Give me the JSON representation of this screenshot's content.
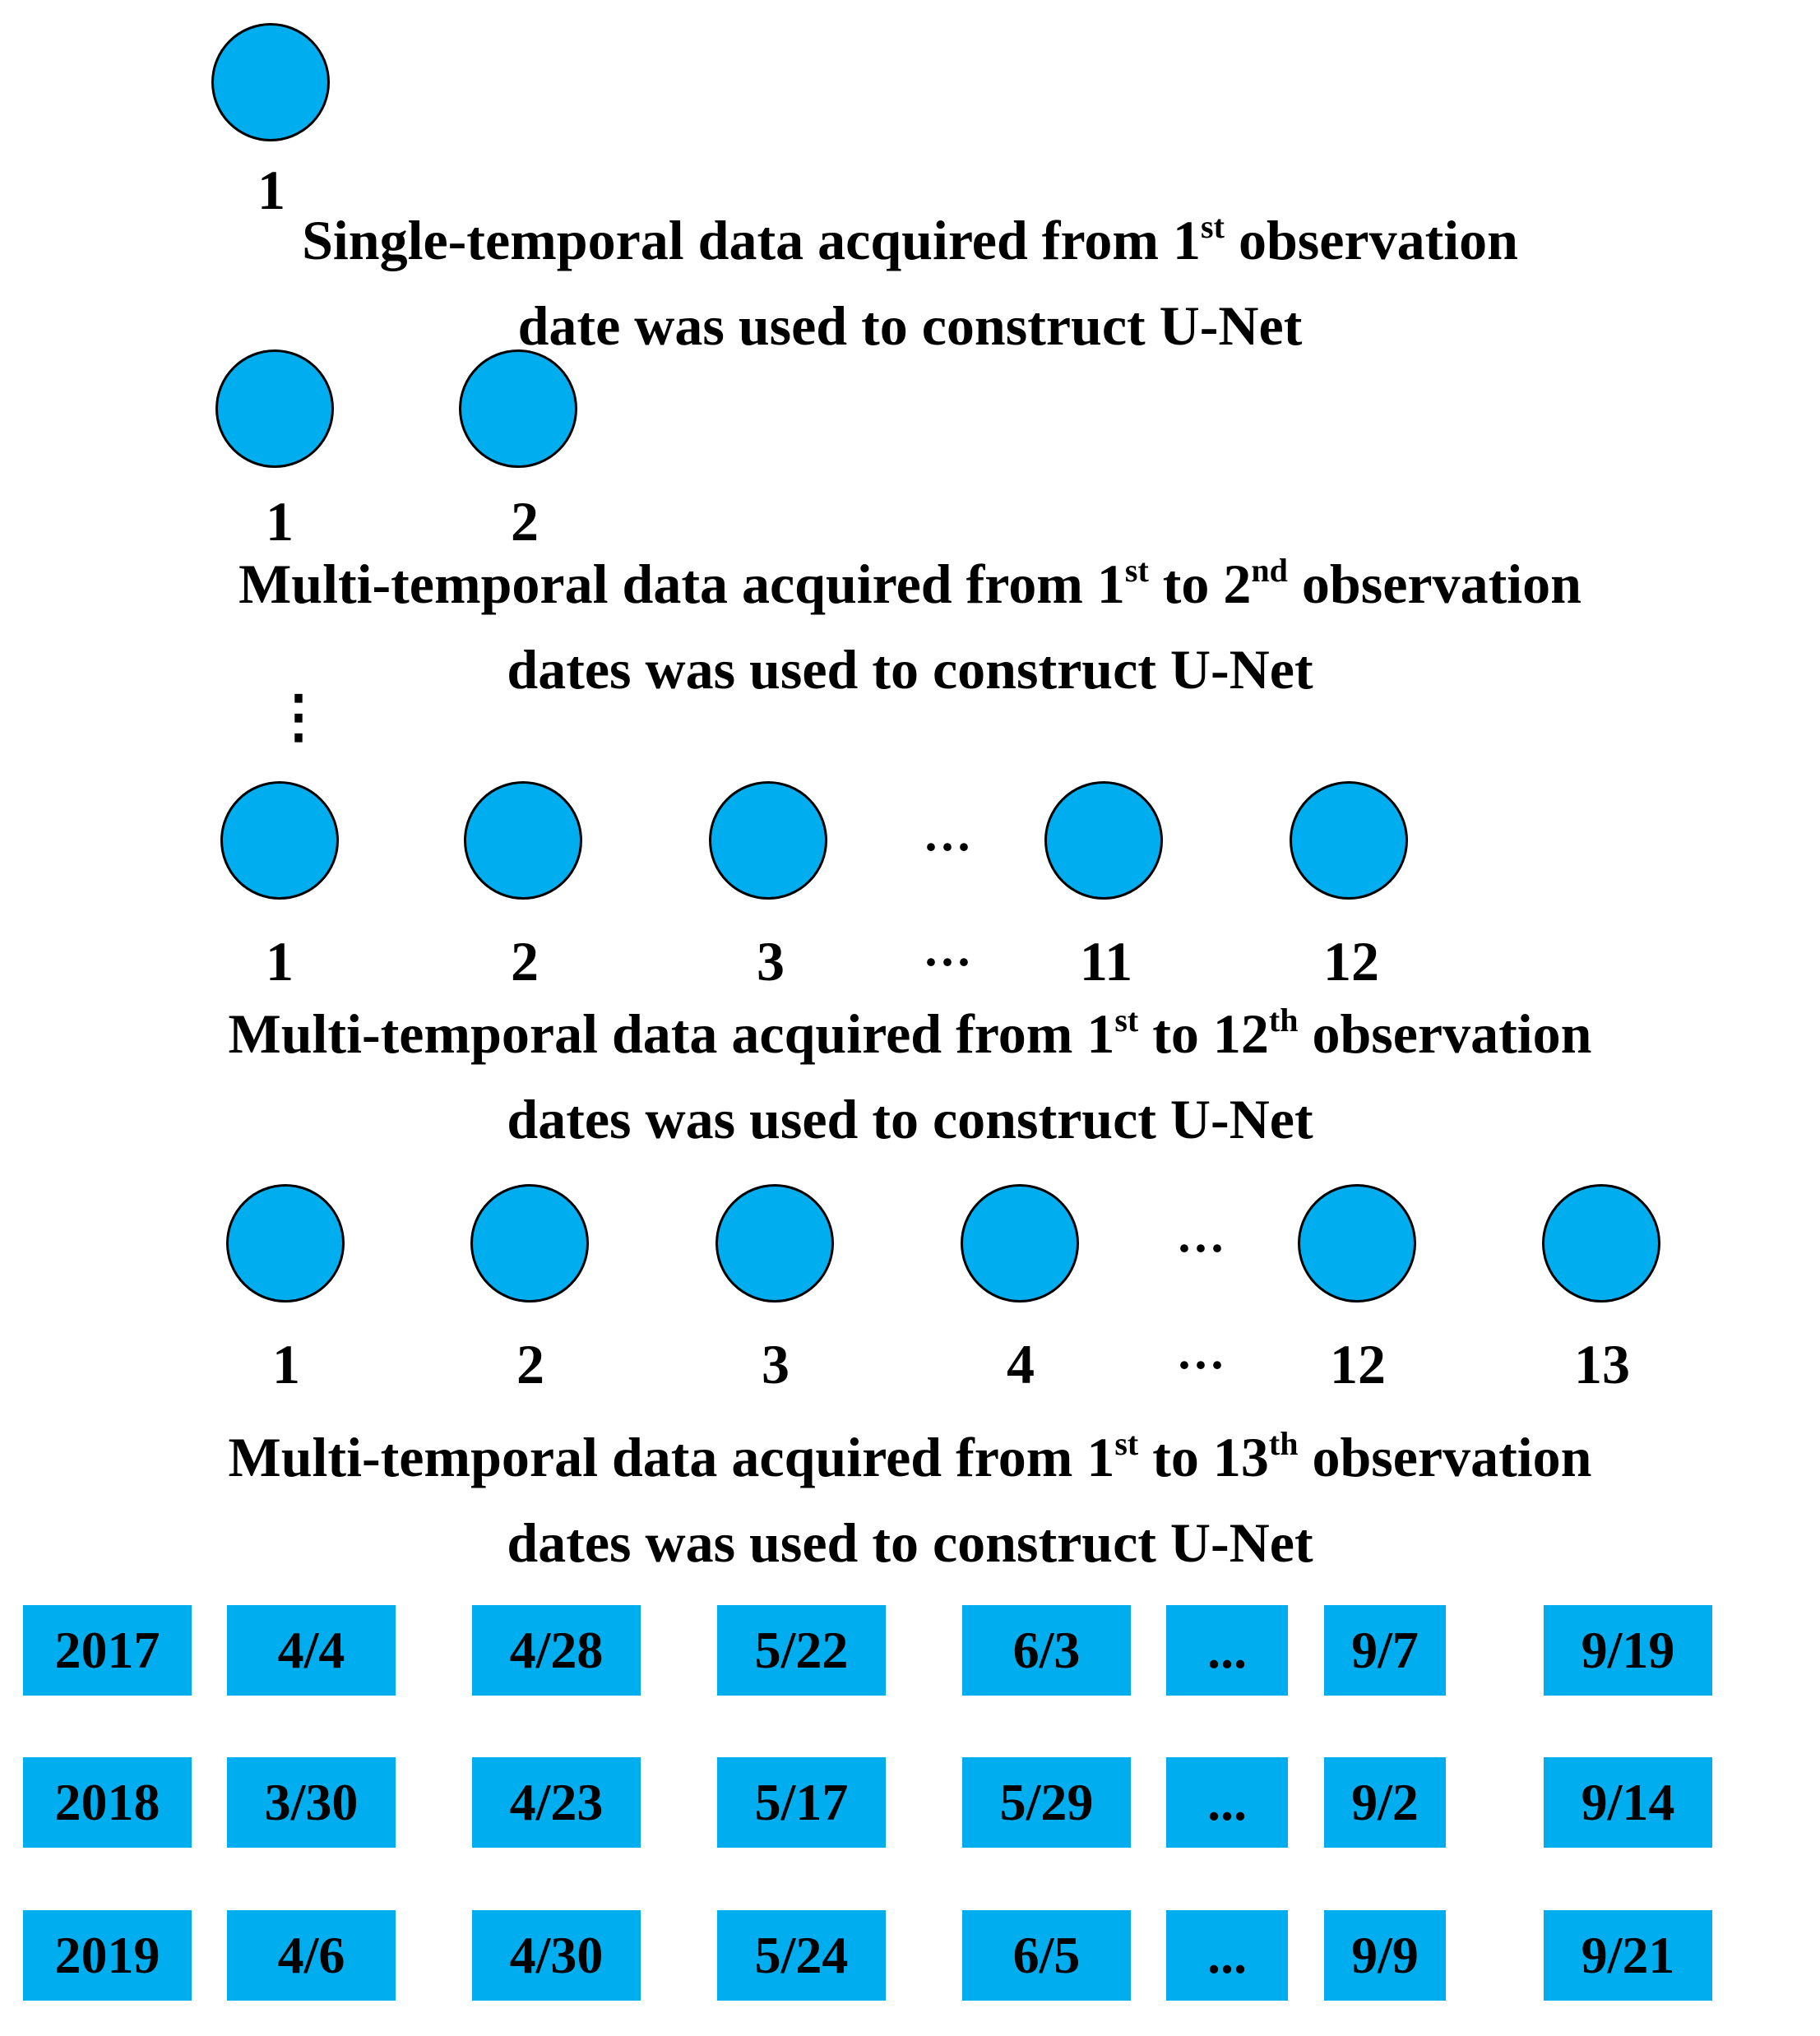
{
  "rows": [
    {
      "labels": [
        "1"
      ],
      "caption": {
        "line1_a": "Single-temporal data acquired from  1",
        "line1_sup1": "st",
        "line1_b": " observation",
        "line1_sup2": "",
        "line1_c": "",
        "line2": "date was used to construct U-Net"
      }
    },
    {
      "labels": [
        "1",
        "2"
      ],
      "caption": {
        "line1_a": "Multi-temporal data acquired from  1",
        "line1_sup1": "st",
        "line1_b": " to 2",
        "line1_sup2": "nd",
        "line1_c": " observation",
        "line2": "dates was used to construct U-Net"
      }
    },
    {
      "labels": [
        "1",
        "2",
        "3",
        "···",
        "11",
        "12"
      ],
      "caption": {
        "line1_a": "Multi-temporal data acquired from  1",
        "line1_sup1": "st",
        "line1_b": " to 12",
        "line1_sup2": "th",
        "line1_c": " observation",
        "line2": "dates was used to construct U-Net"
      }
    },
    {
      "labels": [
        "1",
        "2",
        "3",
        "4",
        "···",
        "12",
        "13"
      ],
      "caption": {
        "line1_a": "Multi-temporal data acquired from  1",
        "line1_sup1": "st",
        "line1_b": " to 13",
        "line1_sup2": "th",
        "line1_c": " observation",
        "line2": "dates was used to construct U-Net"
      }
    }
  ],
  "vertical_ellipsis": "⋮",
  "dots": "···",
  "dates_table": [
    [
      "2017",
      "4/4",
      "4/28",
      "5/22",
      "6/3",
      "...",
      "9/7",
      "9/19"
    ],
    [
      "2018",
      "3/30",
      "4/23",
      "5/17",
      "5/29",
      "...",
      "9/2",
      "9/14"
    ],
    [
      "2019",
      "4/6",
      "4/30",
      "5/24",
      "6/5",
      "...",
      "9/9",
      "9/21"
    ]
  ],
  "colors": {
    "fill": "#00aeef",
    "stroke": "#000000"
  }
}
